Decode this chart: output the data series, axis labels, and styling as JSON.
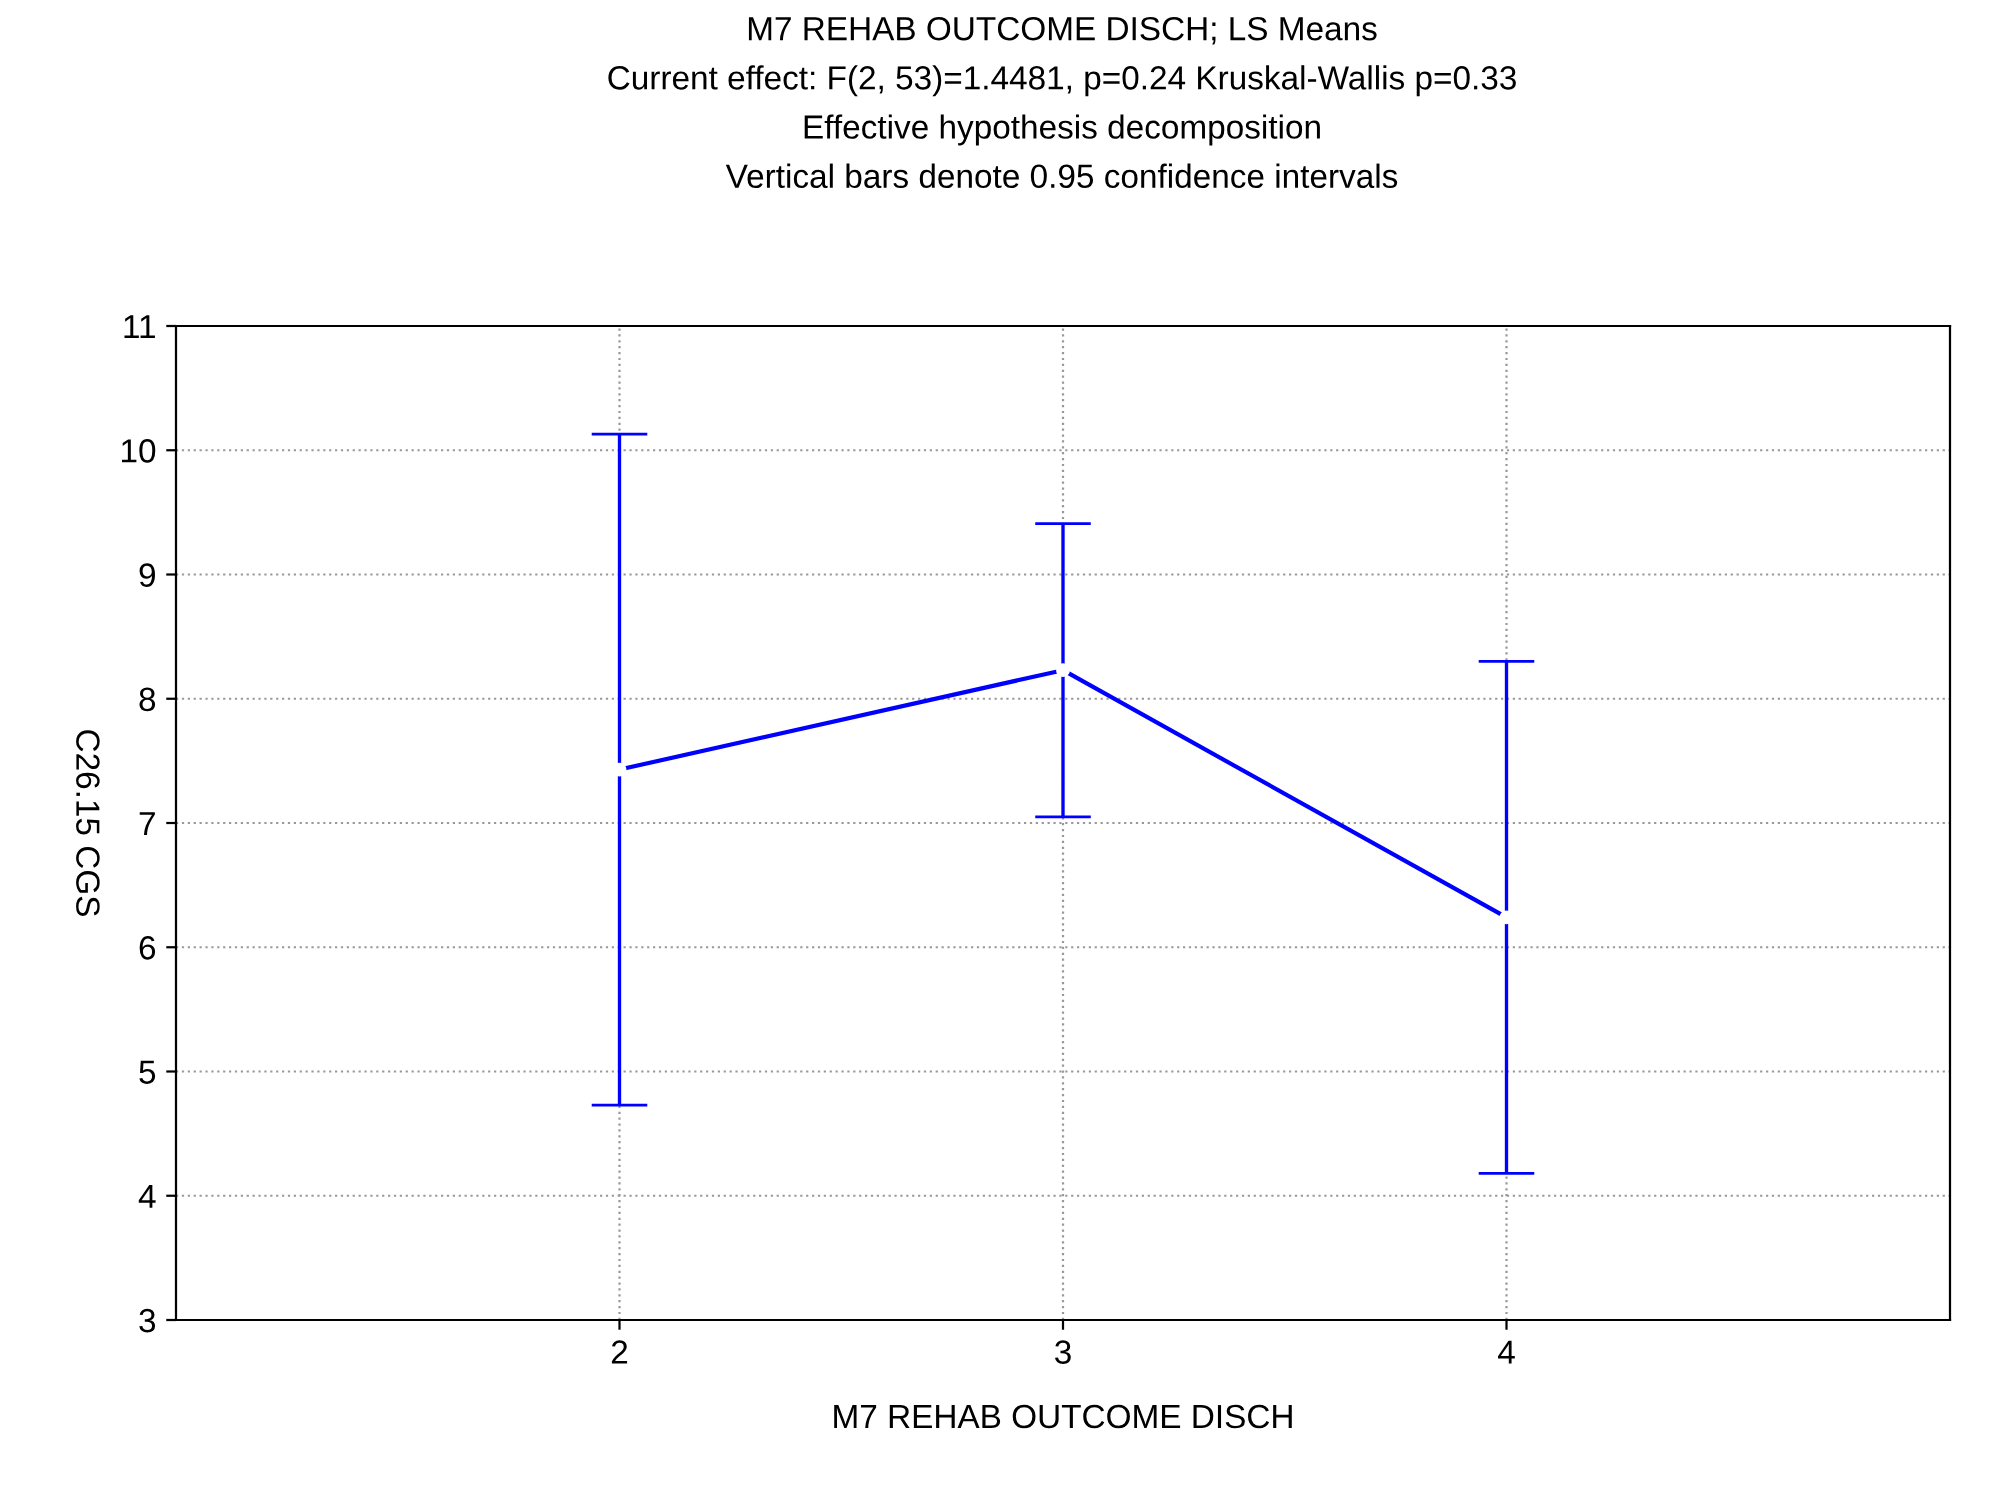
{
  "chart_data": {
    "type": "line",
    "title": "M7 REHAB OUTCOME DISCH; LS Means",
    "subtitle": "Current effect: F(2, 53)=1.4481, p=0.24 Kruskal-Wallis p=0.33\nEffective hypothesis decomposition\nVertical bars denote 0.95 confidence intervals",
    "xlabel": "M7 REHAB OUTCOME DISCH",
    "ylabel": "C26.15 CGS",
    "x": [
      2,
      3,
      4
    ],
    "series": [
      {
        "color": "#0000ff",
        "values": [
          7.43,
          8.23,
          6.24
        ],
        "errors": [
          2.7,
          1.18,
          2.06
        ]
      }
    ],
    "xlim": [
      1,
      5
    ],
    "xticks": [
      2,
      3,
      4
    ],
    "ylim": [
      3,
      11
    ],
    "yticks": [
      3,
      4,
      5,
      6,
      7,
      8,
      9,
      10,
      11
    ],
    "grid": true,
    "marker": "circle",
    "line_style": "solid"
  }
}
